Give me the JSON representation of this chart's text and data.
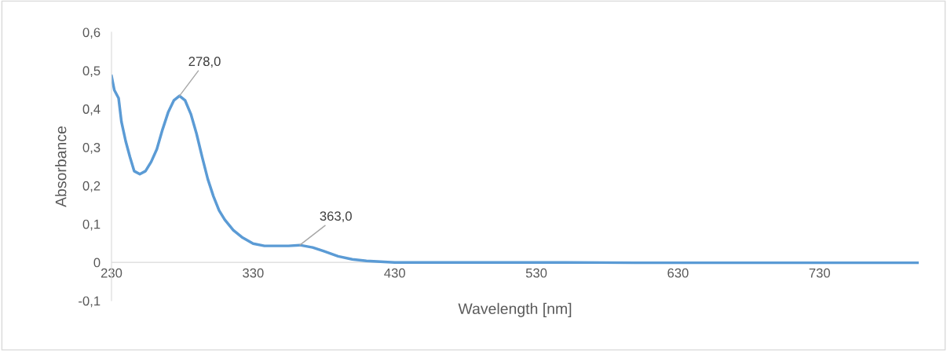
{
  "chart_data": {
    "type": "line",
    "xlabel": "Wavelength [nm]",
    "ylabel": "Absorbance",
    "xlim": [
      230,
      800
    ],
    "xticks": [
      230,
      330,
      430,
      530,
      630,
      730
    ],
    "ylim": [
      -0.1,
      0.6
    ],
    "yticks": [
      {
        "value": -0.1,
        "label": "-0,1"
      },
      {
        "value": 0,
        "label": "0"
      },
      {
        "value": 0.1,
        "label": "0,1"
      },
      {
        "value": 0.2,
        "label": "0,2"
      },
      {
        "value": 0.3,
        "label": "0,3"
      },
      {
        "value": 0.4,
        "label": "0,4"
      },
      {
        "value": 0.5,
        "label": "0,5"
      },
      {
        "value": 0.6,
        "label": "0,6"
      }
    ],
    "grid": false,
    "marker": "none",
    "line_style": "solid",
    "series": [
      {
        "color": "#5b9bd5",
        "x": [
          230,
          232,
          235,
          237,
          240,
          243,
          246,
          250,
          254,
          258,
          262,
          266,
          270,
          274,
          278,
          282,
          286,
          290,
          294,
          298,
          302,
          306,
          310,
          316,
          322,
          330,
          338,
          346,
          355,
          363,
          372,
          380,
          390,
          400,
          410,
          420,
          430,
          460,
          500,
          550,
          600,
          650,
          700,
          750,
          800
        ],
        "values": [
          0.486,
          0.449,
          0.428,
          0.367,
          0.316,
          0.275,
          0.238,
          0.23,
          0.238,
          0.262,
          0.295,
          0.346,
          0.391,
          0.422,
          0.434,
          0.422,
          0.387,
          0.336,
          0.275,
          0.217,
          0.172,
          0.135,
          0.111,
          0.084,
          0.066,
          0.049,
          0.043,
          0.043,
          0.043,
          0.045,
          0.039,
          0.029,
          0.016,
          0.008,
          0.004,
          0.002,
          0.0,
          0.0,
          0.0,
          0.0,
          -0.001,
          -0.001,
          -0.001,
          -0.001,
          -0.001
        ]
      }
    ],
    "annotations": [
      {
        "text": "278,0",
        "x": 278,
        "y": 0.434
      },
      {
        "text": "363,0",
        "x": 363,
        "y": 0.045
      }
    ]
  }
}
